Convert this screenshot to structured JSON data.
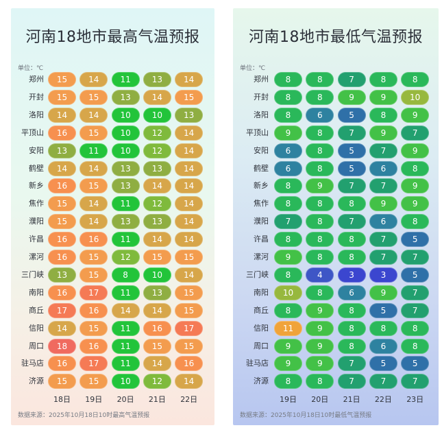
{
  "chart_data": [
    {
      "type": "table",
      "title": "河南18地市最高气温预报",
      "unit_label": "单位：℃",
      "source": "数据来源：2025年10月18日10时最高气温预报",
      "days": [
        "18日",
        "19日",
        "20日",
        "21日",
        "22日"
      ],
      "cities": [
        "郑州",
        "开封",
        "洛阳",
        "平顶山",
        "安阳",
        "鹤壁",
        "新乡",
        "焦作",
        "濮阳",
        "许昌",
        "漯河",
        "三门峡",
        "南阳",
        "商丘",
        "信阳",
        "周口",
        "驻马店",
        "济源"
      ],
      "values": [
        [
          15,
          14,
          11,
          13,
          14
        ],
        [
          15,
          15,
          13,
          14,
          15
        ],
        [
          14,
          14,
          10,
          10,
          13
        ],
        [
          16,
          15,
          10,
          12,
          14
        ],
        [
          13,
          11,
          10,
          12,
          14
        ],
        [
          14,
          14,
          13,
          13,
          14
        ],
        [
          16,
          15,
          13,
          14,
          14
        ],
        [
          15,
          14,
          11,
          12,
          14
        ],
        [
          15,
          14,
          13,
          13,
          14
        ],
        [
          16,
          16,
          11,
          14,
          14
        ],
        [
          16,
          15,
          12,
          15,
          15
        ],
        [
          13,
          15,
          8,
          10,
          14
        ],
        [
          16,
          17,
          11,
          13,
          15
        ],
        [
          17,
          16,
          14,
          14,
          15
        ],
        [
          14,
          15,
          11,
          16,
          17
        ],
        [
          18,
          16,
          11,
          15,
          15
        ],
        [
          16,
          17,
          11,
          14,
          16
        ],
        [
          15,
          15,
          10,
          12,
          14
        ]
      ]
    },
    {
      "type": "table",
      "title": "河南18地市最低气温预报",
      "unit_label": "单位：℃",
      "source": "数据来源：2025年10月18日10时最低气温预报",
      "days": [
        "19日",
        "20日",
        "21日",
        "22日",
        "23日"
      ],
      "cities": [
        "郑州",
        "开封",
        "洛阳",
        "平顶山",
        "安阳",
        "鹤壁",
        "新乡",
        "焦作",
        "濮阳",
        "许昌",
        "漯河",
        "三门峡",
        "南阳",
        "商丘",
        "信阳",
        "周口",
        "驻马店",
        "济源"
      ],
      "values": [
        [
          8,
          8,
          7,
          8,
          8
        ],
        [
          8,
          8,
          9,
          9,
          10
        ],
        [
          8,
          6,
          5,
          8,
          9
        ],
        [
          9,
          8,
          7,
          9,
          7
        ],
        [
          6,
          8,
          5,
          7,
          9
        ],
        [
          6,
          8,
          5,
          6,
          8
        ],
        [
          8,
          9,
          7,
          7,
          9
        ],
        [
          8,
          8,
          8,
          9,
          9
        ],
        [
          7,
          8,
          7,
          6,
          8
        ],
        [
          8,
          8,
          8,
          7,
          5
        ],
        [
          9,
          8,
          8,
          7,
          7
        ],
        [
          8,
          4,
          3,
          3,
          5
        ],
        [
          10,
          8,
          6,
          9,
          7
        ],
        [
          8,
          9,
          8,
          5,
          7
        ],
        [
          11,
          9,
          8,
          8,
          8
        ],
        [
          9,
          9,
          8,
          6,
          8
        ],
        [
          9,
          9,
          7,
          5,
          5
        ],
        [
          8,
          8,
          7,
          7,
          7
        ]
      ]
    }
  ],
  "colors": {
    "high": {
      "8": "#22c43a",
      "10": "#22c43a",
      "11": "#22c43a",
      "12": "#7fba3c",
      "13": "#8fae42",
      "14": "#d7a64a",
      "15": "#f39c4e",
      "16": "#f7904f",
      "17": "#f57a55",
      "18": "#f06a5f"
    },
    "low": {
      "3": "#3b46cf",
      "4": "#3e56c6",
      "5": "#2f70a8",
      "6": "#2e82a0",
      "7": "#22a06f",
      "8": "#2ab85a",
      "9": "#43c147",
      "10": "#97b83e",
      "11": "#f0a33a"
    }
  }
}
